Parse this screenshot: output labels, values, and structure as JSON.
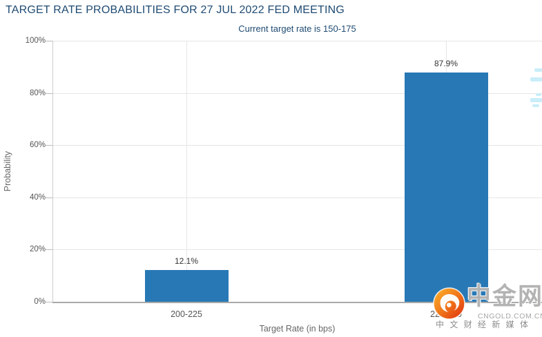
{
  "title": "TARGET RATE PROBABILITIES FOR 27 JUL 2022 FED MEETING",
  "subtitle": "Current target rate is 150-175",
  "chart_data": {
    "type": "bar",
    "title": "TARGET RATE PROBABILITIES FOR 27 JUL 2022 FED MEETING",
    "subtitle": "Current target rate is 150-175",
    "categories": [
      "200-225",
      "225-250"
    ],
    "values": [
      12.1,
      87.9
    ],
    "value_labels": [
      "12.1%",
      "87.9%"
    ],
    "xlabel": "Target Rate (in bps)",
    "ylabel": "Probability",
    "ylim": [
      0,
      100
    ],
    "y_tick_labels": [
      "0%",
      "20%",
      "40%",
      "60%",
      "80%",
      "100%"
    ],
    "grid": true,
    "legend": "none",
    "bar_color": "#2878b5"
  },
  "watermark": {
    "logo_icon": "cngold-swirl-icon",
    "brand": "中金网",
    "domain": "CNGOLD.COM.CN",
    "tagline": "中 文 财 经 新 媒 体"
  },
  "colors": {
    "title_navy": "#1e4a72",
    "bar_blue": "#2878b5",
    "grid_gray": "#e6e6e6",
    "axis_gray": "#a9a9a9",
    "tick_text": "#555555",
    "axis_title_text": "#666666",
    "value_text": "#333333",
    "watermark_gray": "#b3b3b3",
    "edge_fragment_cyan": "#c9eef9"
  }
}
